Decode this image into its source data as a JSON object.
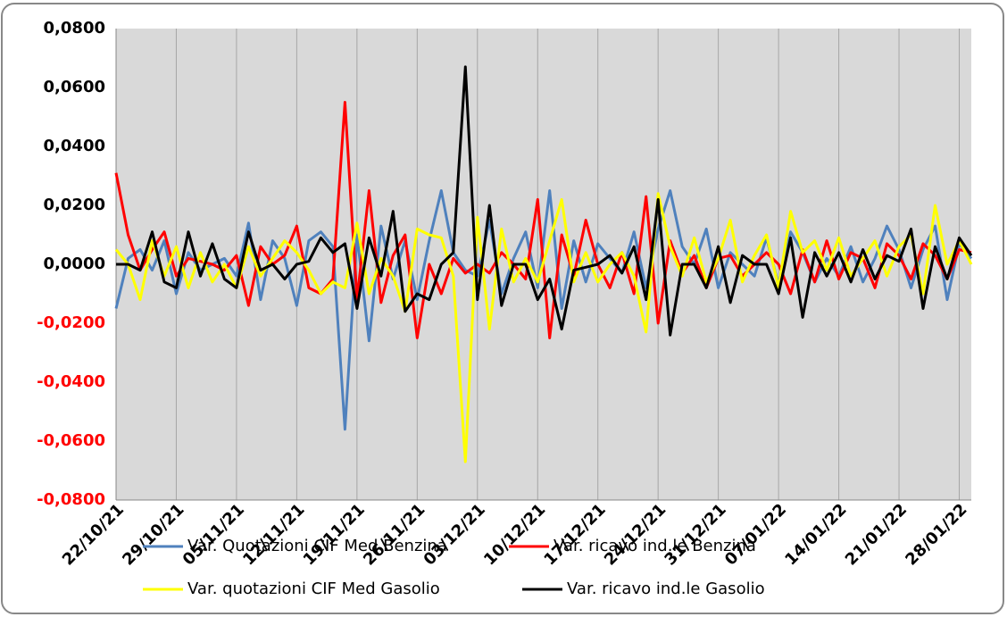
{
  "chart_data": {
    "type": "line",
    "categories": [
      "22/10/21",
      null,
      null,
      null,
      null,
      "29/10/21",
      null,
      null,
      null,
      null,
      "05/11/21",
      null,
      null,
      null,
      null,
      "12/11/21",
      null,
      null,
      null,
      null,
      "19/11/21",
      null,
      null,
      null,
      null,
      "26/11/21",
      null,
      null,
      null,
      null,
      "03/12/21",
      null,
      null,
      null,
      null,
      "10/12/21",
      null,
      null,
      null,
      null,
      "17/12/21",
      null,
      null,
      null,
      null,
      "24/12/21",
      null,
      null,
      null,
      null,
      "31/12/21",
      null,
      null,
      null,
      null,
      "07/01/22",
      null,
      null,
      null,
      null,
      "14/01/22",
      null,
      null,
      null,
      null,
      "21/01/22",
      null,
      null,
      null,
      null,
      "28/01/22",
      null
    ],
    "series": [
      {
        "name": "Var. Quotazioni CIF Med Benzina",
        "color": "#4f81bd",
        "values": [
          -0.015,
          0.002,
          0.005,
          -0.002,
          0.008,
          -0.01,
          0.004,
          -0.002,
          0.0,
          0.002,
          -0.004,
          0.014,
          -0.012,
          0.008,
          0.002,
          -0.014,
          0.008,
          0.011,
          0.006,
          -0.056,
          0.01,
          -0.026,
          0.013,
          -0.005,
          0.008,
          -0.012,
          0.008,
          0.025,
          0.004,
          -0.002,
          -0.004,
          0.015,
          -0.01,
          0.002,
          0.011,
          -0.008,
          0.025,
          -0.015,
          0.008,
          -0.006,
          0.007,
          0.002,
          -0.003,
          0.011,
          -0.008,
          0.012,
          0.025,
          0.006,
          0.0,
          0.012,
          -0.008,
          0.004,
          0.0,
          -0.004,
          0.009,
          -0.007,
          0.011,
          0.004,
          -0.006,
          0.002,
          -0.004,
          0.006,
          -0.006,
          0.002,
          0.013,
          0.005,
          -0.008,
          0.005,
          0.013,
          -0.012,
          0.007,
          0.002
        ]
      },
      {
        "name": "Var. ricavo ind.le Benzina",
        "color": "#ff0000",
        "values": [
          0.031,
          0.01,
          -0.002,
          0.005,
          0.011,
          -0.004,
          0.002,
          0.001,
          0.0,
          -0.002,
          0.003,
          -0.014,
          0.006,
          0.0,
          0.003,
          0.013,
          -0.008,
          -0.01,
          -0.005,
          0.055,
          -0.012,
          0.025,
          -0.013,
          0.003,
          0.01,
          -0.025,
          0.0,
          -0.01,
          0.002,
          -0.003,
          0.0,
          -0.003,
          0.004,
          0.0,
          -0.005,
          0.022,
          -0.025,
          0.01,
          -0.004,
          0.015,
          0.0,
          -0.008,
          0.004,
          -0.01,
          0.023,
          -0.02,
          0.008,
          -0.003,
          0.003,
          -0.008,
          0.002,
          0.003,
          -0.004,
          0.0,
          0.004,
          0.0,
          -0.01,
          0.005,
          -0.006,
          0.008,
          -0.005,
          0.004,
          0.002,
          -0.008,
          0.007,
          0.003,
          -0.005,
          0.007,
          0.003,
          -0.005,
          0.005,
          0.004
        ]
      },
      {
        "name": "Var. quotazioni CIF Med Gasolio",
        "color": "#ffff00",
        "values": [
          0.005,
          0.0,
          -0.012,
          0.008,
          -0.004,
          0.006,
          -0.008,
          0.004,
          -0.006,
          0.0,
          -0.008,
          0.006,
          -0.004,
          0.002,
          0.008,
          0.004,
          -0.002,
          -0.01,
          -0.006,
          -0.008,
          0.014,
          -0.01,
          0.002,
          -0.004,
          -0.016,
          0.012,
          0.01,
          0.009,
          -0.004,
          -0.067,
          0.016,
          -0.022,
          0.012,
          -0.006,
          0.002,
          -0.006,
          0.008,
          0.022,
          -0.006,
          0.004,
          -0.006,
          0.0,
          0.004,
          -0.004,
          -0.023,
          0.024,
          0.006,
          -0.004,
          0.009,
          -0.006,
          0.002,
          0.015,
          -0.006,
          0.003,
          0.01,
          -0.008,
          0.018,
          0.004,
          0.008,
          -0.002,
          0.009,
          -0.004,
          0.002,
          0.008,
          -0.004,
          0.006,
          0.01,
          -0.01,
          0.02,
          0.0,
          0.008,
          0.0
        ]
      },
      {
        "name": "Var. ricavo ind.le Gasolio",
        "color": "#000000",
        "values": [
          0.0,
          0.0,
          -0.002,
          0.011,
          -0.006,
          -0.008,
          0.011,
          -0.004,
          0.007,
          -0.005,
          -0.008,
          0.011,
          -0.002,
          0.0,
          -0.005,
          0.0,
          0.001,
          0.009,
          0.004,
          0.007,
          -0.015,
          0.009,
          -0.004,
          0.018,
          -0.016,
          -0.01,
          -0.012,
          0.0,
          0.004,
          0.067,
          -0.012,
          0.02,
          -0.014,
          0.0,
          0.0,
          -0.012,
          -0.005,
          -0.022,
          -0.002,
          -0.001,
          0.0,
          0.003,
          -0.003,
          0.006,
          -0.012,
          0.022,
          -0.024,
          0.0,
          0.0,
          -0.008,
          0.006,
          -0.013,
          0.003,
          0.0,
          0.0,
          -0.01,
          0.009,
          -0.018,
          0.004,
          -0.004,
          0.004,
          -0.006,
          0.005,
          -0.005,
          0.003,
          0.001,
          0.012,
          -0.015,
          0.006,
          -0.005,
          0.009,
          0.003
        ]
      }
    ],
    "ylim": [
      -0.08,
      0.08
    ],
    "yticks": [
      {
        "value": 0.08,
        "label": "0,0800"
      },
      {
        "value": 0.06,
        "label": "0,0600"
      },
      {
        "value": 0.04,
        "label": "0,0400"
      },
      {
        "value": 0.02,
        "label": "0,0200"
      },
      {
        "value": 0,
        "label": "0,0000"
      },
      {
        "value": -0.02,
        "label": "-0,0200"
      },
      {
        "value": -0.04,
        "label": "-0,0400"
      },
      {
        "value": -0.06,
        "label": "-0,0600"
      },
      {
        "value": -0.08,
        "label": "-0,0800"
      }
    ],
    "negative_tick_color": "#ff0000",
    "grid": "x"
  }
}
